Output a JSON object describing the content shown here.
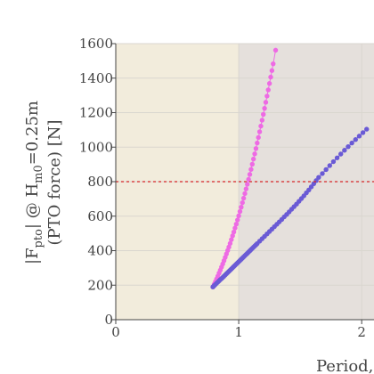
{
  "chart_data": {
    "type": "scatter",
    "title": "",
    "xlabel": "Period,",
    "ylabel_main": "|F",
    "ylabel_sub1": "pto",
    "ylabel_mid": "| @ H",
    "ylabel_sub2": "m0",
    "ylabel_end": "=0.25m",
    "ylabel_line2": "(PTO force) [N]",
    "xlim": [
      0,
      2.1
    ],
    "ylim": [
      0,
      1600
    ],
    "x_ticks": [
      0,
      1,
      2
    ],
    "y_ticks": [
      0,
      200,
      400,
      600,
      800,
      1000,
      1200,
      1400,
      1600
    ],
    "grid": true,
    "threshold": {
      "y": 800,
      "color": "#d62728",
      "style": "dashed"
    },
    "regions": [
      {
        "x_from": 0,
        "x_to": 1,
        "color": "#f2ecdc"
      },
      {
        "x_from": 1,
        "x_to": 2.1,
        "color": "#e5e0dc"
      }
    ],
    "series": [
      {
        "color": "#ee6ae4",
        "points": [
          [
            0.79,
            190
          ],
          [
            0.8,
            205
          ],
          [
            0.81,
            220
          ],
          [
            0.82,
            236
          ],
          [
            0.83,
            252
          ],
          [
            0.84,
            270
          ],
          [
            0.85,
            287
          ],
          [
            0.86,
            305
          ],
          [
            0.87,
            323
          ],
          [
            0.88,
            342
          ],
          [
            0.89,
            361
          ],
          [
            0.9,
            381
          ],
          [
            0.91,
            401
          ],
          [
            0.92,
            421
          ],
          [
            0.93,
            442
          ],
          [
            0.94,
            464
          ],
          [
            0.95,
            486
          ],
          [
            0.96,
            508
          ],
          [
            0.97,
            531
          ],
          [
            0.98,
            554
          ],
          [
            0.99,
            578
          ],
          [
            1.0,
            602
          ],
          [
            1.01,
            627
          ],
          [
            1.02,
            652
          ],
          [
            1.03,
            678
          ],
          [
            1.04,
            704
          ],
          [
            1.05,
            731
          ],
          [
            1.06,
            758
          ],
          [
            1.07,
            785
          ],
          [
            1.08,
            813
          ],
          [
            1.09,
            842
          ],
          [
            1.1,
            871
          ],
          [
            1.11,
            901
          ],
          [
            1.12,
            931
          ],
          [
            1.13,
            961
          ],
          [
            1.14,
            992
          ],
          [
            1.15,
            1024
          ],
          [
            1.16,
            1056
          ],
          [
            1.17,
            1089
          ],
          [
            1.18,
            1122
          ],
          [
            1.19,
            1156
          ],
          [
            1.2,
            1190
          ],
          [
            1.21,
            1225
          ],
          [
            1.22,
            1260
          ],
          [
            1.23,
            1296
          ],
          [
            1.24,
            1332
          ],
          [
            1.25,
            1369
          ],
          [
            1.26,
            1406
          ],
          [
            1.27,
            1444
          ],
          [
            1.28,
            1483
          ],
          [
            1.3,
            1562
          ]
        ]
      },
      {
        "color": "#6a5ad5",
        "points": [
          [
            0.79,
            190
          ],
          [
            0.8,
            197
          ],
          [
            0.81,
            204
          ],
          [
            0.82,
            211
          ],
          [
            0.83,
            218
          ],
          [
            0.84,
            225
          ],
          [
            0.85,
            232
          ],
          [
            0.86,
            238
          ],
          [
            0.87,
            245
          ],
          [
            0.88,
            252
          ],
          [
            0.89,
            259
          ],
          [
            0.9,
            266
          ],
          [
            0.91,
            273
          ],
          [
            0.92,
            280
          ],
          [
            0.93,
            287
          ],
          [
            0.94,
            294
          ],
          [
            0.95,
            301
          ],
          [
            0.96,
            308
          ],
          [
            0.97,
            315
          ],
          [
            0.98,
            322
          ],
          [
            0.99,
            329
          ],
          [
            1.0,
            336
          ],
          [
            1.01,
            343
          ],
          [
            1.02,
            350
          ],
          [
            1.03,
            357
          ],
          [
            1.04,
            364
          ],
          [
            1.05,
            371
          ],
          [
            1.06,
            378
          ],
          [
            1.07,
            385
          ],
          [
            1.08,
            392
          ],
          [
            1.09,
            399
          ],
          [
            1.1,
            406
          ],
          [
            1.11,
            413
          ],
          [
            1.12,
            420
          ],
          [
            1.13,
            427
          ],
          [
            1.14,
            434
          ],
          [
            1.15,
            441
          ],
          [
            1.17,
            455
          ],
          [
            1.19,
            469
          ],
          [
            1.21,
            483
          ],
          [
            1.23,
            497
          ],
          [
            1.25,
            511
          ],
          [
            1.27,
            525
          ],
          [
            1.29,
            539
          ],
          [
            1.31,
            553
          ],
          [
            1.33,
            567
          ],
          [
            1.35,
            581
          ],
          [
            1.37,
            596
          ],
          [
            1.39,
            610
          ],
          [
            1.41,
            625
          ],
          [
            1.43,
            640
          ],
          [
            1.45,
            655
          ],
          [
            1.47,
            670
          ],
          [
            1.49,
            686
          ],
          [
            1.51,
            702
          ],
          [
            1.53,
            718
          ],
          [
            1.55,
            735
          ],
          [
            1.57,
            752
          ],
          [
            1.59,
            770
          ],
          [
            1.61,
            788
          ],
          [
            1.63,
            806
          ],
          [
            1.65,
            825
          ],
          [
            1.68,
            847
          ],
          [
            1.71,
            870
          ],
          [
            1.74,
            893
          ],
          [
            1.77,
            916
          ],
          [
            1.8,
            938
          ],
          [
            1.83,
            960
          ],
          [
            1.86,
            982
          ],
          [
            1.89,
            1003
          ],
          [
            1.92,
            1024
          ],
          [
            1.95,
            1044
          ],
          [
            1.98,
            1064
          ],
          [
            2.01,
            1084
          ],
          [
            2.04,
            1104
          ]
        ]
      }
    ]
  }
}
